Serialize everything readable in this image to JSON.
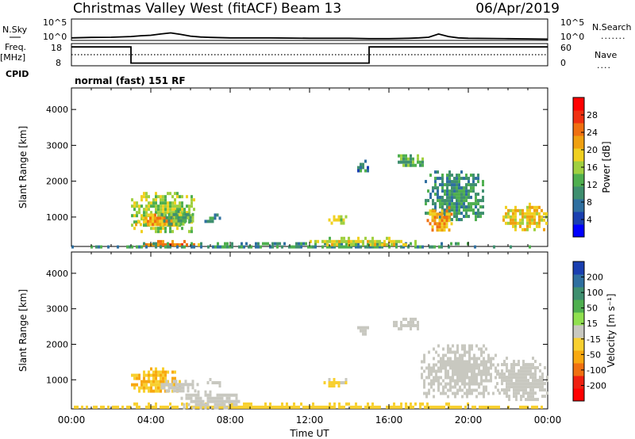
{
  "header": {
    "title": "Christmas Valley West (fitACF)",
    "beam": "Beam 13",
    "date": "06/Apr/2019"
  },
  "left_labels": {
    "nsky": "N.Sky",
    "freq_top": "Freq.",
    "freq_unit": "[MHz]",
    "cpid": "CPID"
  },
  "right_labels": {
    "nsearch": "N.Search",
    "nave": "Nave"
  },
  "mode_text": "normal (fast) 151 RF",
  "chart_data": [
    {
      "id": "noise",
      "type": "line",
      "left_ticks": [
        "10^5",
        "10^0"
      ],
      "right_ticks": [
        "10^5",
        "10^0"
      ],
      "series": [
        {
          "style": "solid",
          "x": [
            0,
            1,
            2,
            3,
            3.5,
            4,
            4.5,
            5,
            5.5,
            6,
            6.5,
            7,
            8,
            10,
            12,
            13,
            14,
            15,
            16,
            17,
            17.5,
            18,
            18.5,
            19,
            19.5,
            20,
            22,
            24
          ],
          "y": [
            0.12,
            0.14,
            0.15,
            0.18,
            0.22,
            0.24,
            0.3,
            0.35,
            0.28,
            0.2,
            0.16,
            0.14,
            0.12,
            0.12,
            0.1,
            0.1,
            0.1,
            0.08,
            0.08,
            0.1,
            0.12,
            0.15,
            0.3,
            0.18,
            0.12,
            0.1,
            0.08,
            0.06
          ]
        }
      ]
    },
    {
      "id": "frequency",
      "type": "line",
      "left_ticks": [
        "18",
        "8"
      ],
      "right_ticks": [
        "60",
        "0"
      ],
      "series": [
        {
          "style": "solid-step",
          "x": [
            0,
            3,
            3,
            15,
            15,
            24
          ],
          "y": [
            0.85,
            0.85,
            0.12,
            0.12,
            0.85,
            0.85
          ]
        },
        {
          "style": "dotted",
          "x": [
            0,
            24
          ],
          "y": [
            0.5,
            0.5
          ]
        }
      ]
    },
    {
      "id": "power",
      "type": "heatmap",
      "ylabel": "Slant Range [km]",
      "xlim": [
        0,
        24
      ],
      "ylim": [
        180,
        4600
      ],
      "yticks": [
        1000,
        2000,
        3000,
        4000
      ],
      "colorbar": {
        "label": "Power [dB]",
        "ticks": [
          "4",
          "8",
          "12",
          "16",
          "20",
          "24",
          "28"
        ],
        "colors": [
          "#0000ff",
          "#1a3fb0",
          "#2f6fa0",
          "#3f8f6f",
          "#4faf4f",
          "#a0d040",
          "#f0d020",
          "#f0a010",
          "#f07010",
          "#f03010",
          "#ff0000"
        ]
      },
      "patches": [
        {
          "x0": 3.0,
          "x1": 6.2,
          "r0": 600,
          "r1": 1700,
          "v": 16
        },
        {
          "x0": 3.2,
          "x1": 5.5,
          "r0": 750,
          "r1": 1100,
          "v": 22
        },
        {
          "x0": 4.5,
          "x1": 6.3,
          "r0": 800,
          "r1": 1200,
          "v": 12
        },
        {
          "x0": 6.7,
          "x1": 7.6,
          "r0": 850,
          "r1": 1100,
          "v": 8
        },
        {
          "x0": 12.7,
          "x1": 14.0,
          "r0": 850,
          "r1": 1050,
          "v": 16
        },
        {
          "x0": 14.4,
          "x1": 15.0,
          "r0": 2300,
          "r1": 2600,
          "v": 8
        },
        {
          "x0": 16.2,
          "x1": 17.7,
          "r0": 2450,
          "r1": 2750,
          "v": 12
        },
        {
          "x0": 17.8,
          "x1": 20.8,
          "r0": 900,
          "r1": 2300,
          "v": 10
        },
        {
          "x0": 17.9,
          "x1": 19.2,
          "r0": 650,
          "r1": 1300,
          "v": 22
        },
        {
          "x0": 21.6,
          "x1": 24.0,
          "r0": 650,
          "r1": 1400,
          "v": 20
        },
        {
          "x0": 3.0,
          "x1": 6.5,
          "r0": 200,
          "r1": 360,
          "v": 24
        },
        {
          "x0": 0.0,
          "x1": 24.0,
          "r0": 200,
          "r1": 300,
          "v": 10
        },
        {
          "x0": 12.0,
          "x1": 17.5,
          "r0": 250,
          "r1": 450,
          "v": 18
        }
      ]
    },
    {
      "id": "velocity",
      "type": "heatmap",
      "ylabel": "Slant Range [km]",
      "xlabel": "Time UT",
      "xlim": [
        0,
        24
      ],
      "ylim": [
        180,
        4600
      ],
      "yticks": [
        1000,
        2000,
        3000,
        4000
      ],
      "xticks": [
        "00:00",
        "04:00",
        "08:00",
        "12:00",
        "16:00",
        "20:00",
        "00:00"
      ],
      "colorbar": {
        "label": "Velocity [m s⁻¹]",
        "ticks": [
          "200",
          "100",
          "50",
          "15",
          "-15",
          "-50",
          "-100",
          "-200"
        ],
        "colors": [
          "#1a3fb0",
          "#2f6fa0",
          "#3f8f6f",
          "#4faf4f",
          "#90e050",
          "#c8c8c0",
          "#f8d030",
          "#f8a810",
          "#f07010",
          "#f02010",
          "#ff0000"
        ]
      },
      "patches": [
        {
          "x0": 3.0,
          "x1": 5.5,
          "r0": 650,
          "r1": 1350,
          "v": -60
        },
        {
          "x0": 4.5,
          "x1": 6.5,
          "r0": 650,
          "r1": 1000,
          "v": 0
        },
        {
          "x0": 6.7,
          "x1": 7.6,
          "r0": 850,
          "r1": 1050,
          "v": 0
        },
        {
          "x0": 12.7,
          "x1": 14.0,
          "r0": 850,
          "r1": 1050,
          "v": -20
        },
        {
          "x0": 14.4,
          "x1": 15.0,
          "r0": 2300,
          "r1": 2600,
          "v": 0
        },
        {
          "x0": 16.2,
          "x1": 17.7,
          "r0": 2450,
          "r1": 2750,
          "v": 0
        },
        {
          "x0": 17.6,
          "x1": 21.5,
          "r0": 500,
          "r1": 2000,
          "v": 0
        },
        {
          "x0": 21.4,
          "x1": 24.0,
          "r0": 400,
          "r1": 1650,
          "v": 0
        },
        {
          "x0": 0.0,
          "x1": 24.0,
          "r0": 200,
          "r1": 360,
          "v": -30
        },
        {
          "x0": 5.5,
          "x1": 8.5,
          "r0": 200,
          "r1": 700,
          "v": 10
        }
      ]
    }
  ]
}
